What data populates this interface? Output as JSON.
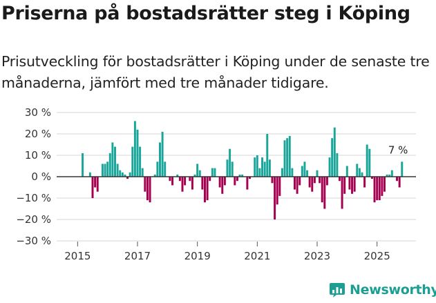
{
  "title": "Priserna på bostadsrätter steg i Köping",
  "subtitle": "Prisutveckling för bostadsrätter i Köping under de senaste tre månaderna, jämfört med tre månader tidigare.",
  "brand": {
    "name": "Newsworthy"
  },
  "colors": {
    "positive": "#1aa59a",
    "negative": "#a5004f",
    "grid": "#d6d6d6",
    "axis": "#333333",
    "brand": "#1c9e93"
  },
  "chart_data": {
    "type": "bar",
    "title": "Priserna på bostadsrätter steg i Köping",
    "xlabel": "",
    "ylabel": "",
    "x_range": [
      2014.3,
      2026.3
    ],
    "ylim": [
      -30,
      30
    ],
    "y_ticks": [
      -30,
      -20,
      -10,
      0,
      10,
      20,
      30
    ],
    "y_tick_labels": [
      "−30 %",
      "−20 %",
      "−10 %",
      "0 %",
      "10 %",
      "20 %",
      "30 %"
    ],
    "x_ticks": [
      2015,
      2017,
      2019,
      2021,
      2023,
      2025
    ],
    "x_tick_labels": [
      "2015",
      "2017",
      "2019",
      "2021",
      "2023",
      "2025"
    ],
    "x_start": 2015.0,
    "x_step": 0.08333,
    "values": [
      0,
      0,
      11,
      0,
      0,
      2,
      -10,
      -5,
      -7,
      0,
      6,
      6,
      7,
      11,
      16,
      14,
      6,
      3,
      2,
      1,
      -1,
      2,
      14,
      26,
      22,
      14,
      4,
      -7,
      -11,
      -12,
      0,
      1,
      7,
      16,
      21,
      7,
      0,
      -2,
      -4,
      0,
      1,
      -2,
      -7,
      -4,
      0,
      -2,
      -6,
      1,
      6,
      3,
      -6,
      -12,
      -11,
      -2,
      4,
      4,
      0,
      -5,
      -8,
      -4,
      8,
      13,
      7,
      -4,
      -2,
      1,
      1,
      0,
      -6,
      -1,
      0,
      9,
      10,
      4,
      9,
      7,
      20,
      8,
      -3,
      -20,
      -13,
      -9,
      4,
      17,
      18,
      19,
      4,
      -6,
      -8,
      -4,
      5,
      7,
      3,
      -5,
      -7,
      -3,
      3,
      -3,
      -12,
      -15,
      -4,
      9,
      18,
      23,
      11,
      -2,
      -15,
      -8,
      5,
      -6,
      -8,
      -7,
      6,
      4,
      2,
      -5,
      15,
      13,
      -1,
      -12,
      -11,
      -11,
      -9,
      -7,
      1,
      1,
      3,
      0,
      -2,
      -5,
      7
    ],
    "annotations": [
      {
        "text": "7 %",
        "x": 2025.75,
        "y": 7
      }
    ]
  }
}
